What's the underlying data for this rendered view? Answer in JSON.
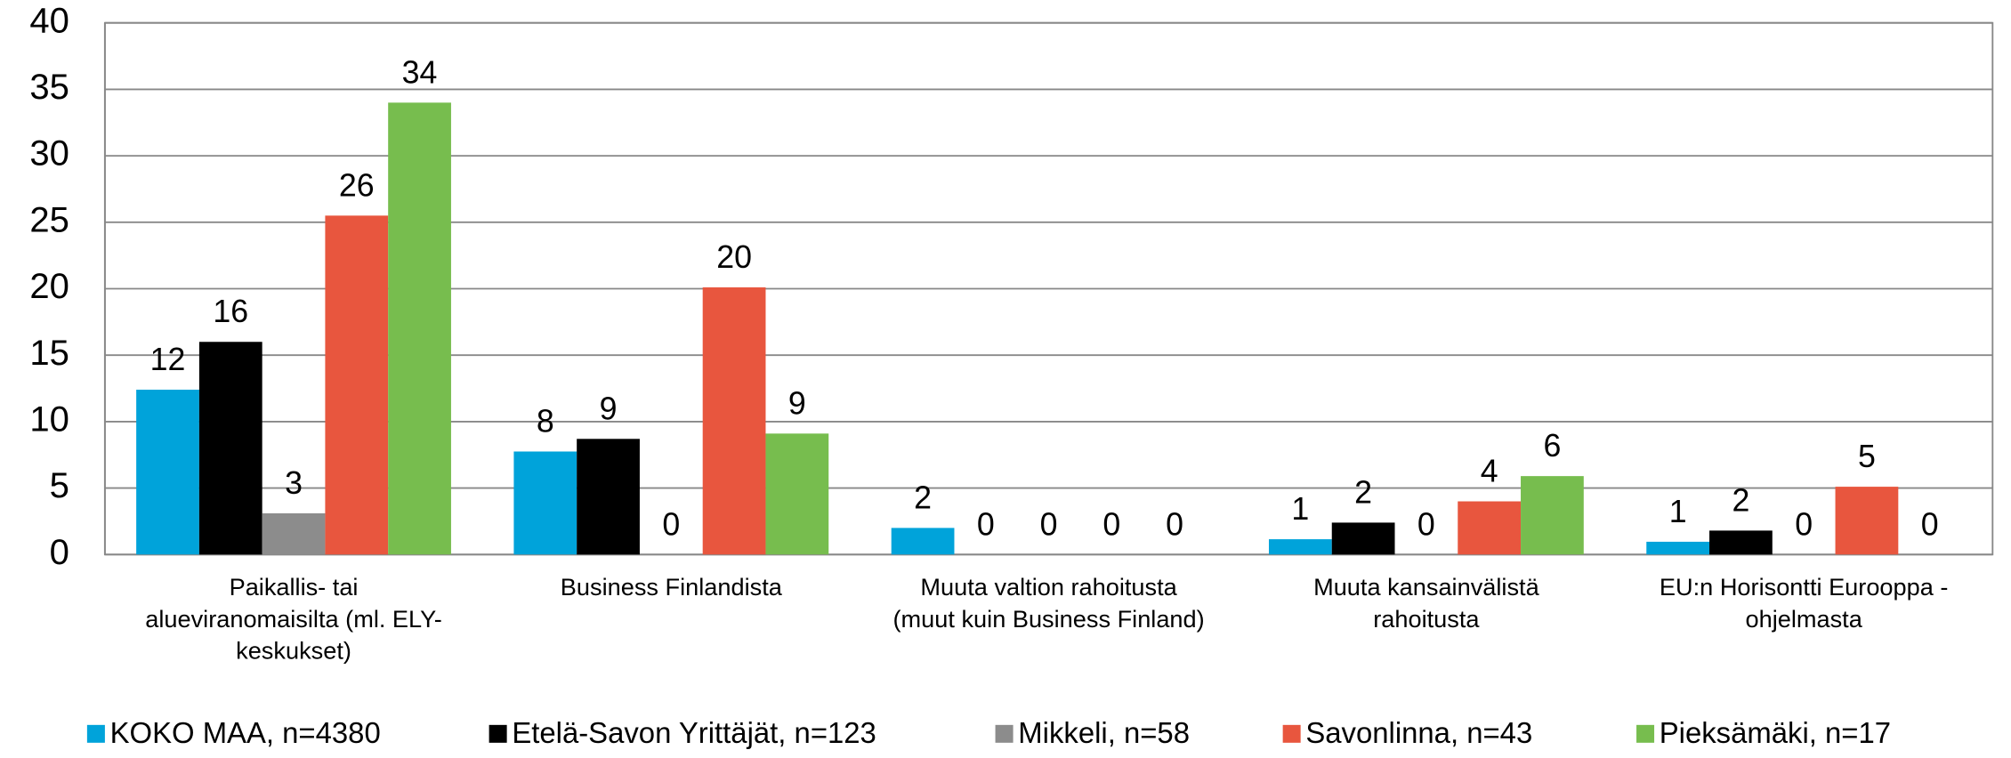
{
  "chart_data": {
    "type": "bar",
    "categories": [
      [
        "Paikallis- tai",
        "alueviranomaisilta (ml. ELY-",
        "keskukset)"
      ],
      [
        "Business Finlandista"
      ],
      [
        "Muuta valtion rahoitusta",
        "(muut kuin Business Finland)"
      ],
      [
        "Muuta kansainvälistä",
        "rahoitusta"
      ],
      [
        "EU:n Horisontti Eurooppa -",
        "ohjelmasta"
      ]
    ],
    "series": [
      {
        "name": "KOKO MAA, n=4380",
        "color": "#00a3da",
        "values": [
          12.4,
          7.75,
          2.0,
          1.15,
          0.96
        ],
        "value_labels": [
          "12",
          "8",
          "2",
          "1",
          "1"
        ]
      },
      {
        "name": "Etelä-Savon Yrittäjät, n=123",
        "color": "#000000",
        "values": [
          16.0,
          8.7,
          0,
          2.4,
          1.8
        ],
        "value_labels": [
          "16",
          "9",
          "0",
          "2",
          "2"
        ]
      },
      {
        "name": "Mikkeli, n=58",
        "color": "#8c8c8c",
        "values": [
          3.1,
          0,
          0,
          0,
          0
        ],
        "value_labels": [
          "3",
          "0",
          "0",
          "0",
          "0"
        ]
      },
      {
        "name": "Savonlinna, n=43",
        "color": "#e8563e",
        "values": [
          25.5,
          20.1,
          0,
          4.0,
          5.1
        ],
        "value_labels": [
          "26",
          "20",
          "0",
          "4",
          "5"
        ]
      },
      {
        "name": "Pieksämäki, n=17",
        "color": "#77bd4e",
        "values": [
          34.0,
          9.1,
          0,
          5.9,
          0
        ],
        "value_labels": [
          "34",
          "9",
          "0",
          "6",
          "0"
        ]
      }
    ],
    "ylim": [
      0,
      40
    ],
    "yticks": [
      0,
      5,
      10,
      15,
      20,
      25,
      30,
      35,
      40
    ],
    "grid": true,
    "legend": "bottom"
  }
}
